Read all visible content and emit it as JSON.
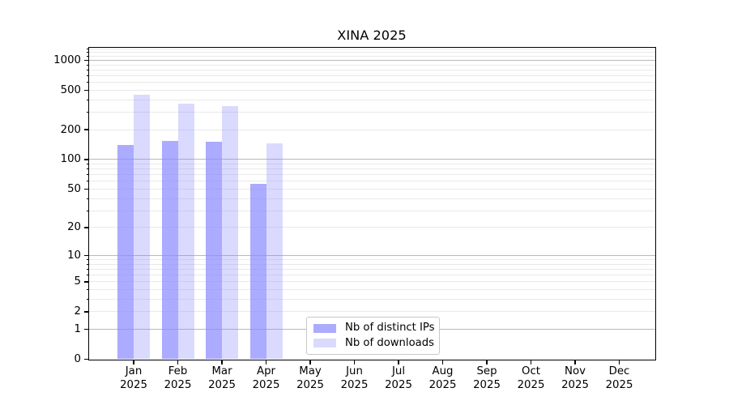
{
  "title": "XINA 2025",
  "chart_data": {
    "type": "bar",
    "title": "XINA 2025",
    "scale": "log1p",
    "grid": "horizontal",
    "legend_position": "lower center",
    "categories": [
      "Jan 2025",
      "Feb 2025",
      "Mar 2025",
      "Apr 2025",
      "May 2025",
      "Jun 2025",
      "Jul 2025",
      "Aug 2025",
      "Sep 2025",
      "Oct 2025",
      "Nov 2025",
      "Dec 2025"
    ],
    "series": [
      {
        "name": "Nb of distinct IPs",
        "color": "rgba(136,136,255,0.71)",
        "values": [
          140,
          153,
          151,
          57,
          0,
          0,
          0,
          0,
          0,
          0,
          0,
          0
        ]
      },
      {
        "name": "Nb of downloads",
        "color": "rgba(136,136,255,0.31)",
        "values": [
          450,
          367,
          344,
          145,
          0,
          0,
          0,
          0,
          0,
          0,
          0,
          0
        ]
      }
    ],
    "y_ticks": [
      0,
      1,
      2,
      5,
      10,
      20,
      50,
      100,
      200,
      500,
      1000
    ],
    "ylim": [
      0,
      1336
    ],
    "gridlines": {
      "major": [
        1,
        10,
        100,
        1000
      ],
      "minor": [
        2,
        3,
        4,
        5,
        6,
        7,
        8,
        9,
        20,
        30,
        40,
        50,
        60,
        70,
        80,
        90,
        200,
        300,
        400,
        500,
        600,
        700,
        800,
        900,
        1100,
        1200,
        1300
      ]
    },
    "colors": {
      "major_grid": "#b9b9b9",
      "minor_grid": "#e9e9e9",
      "axis": "#000000",
      "background": "#ffffff"
    }
  }
}
